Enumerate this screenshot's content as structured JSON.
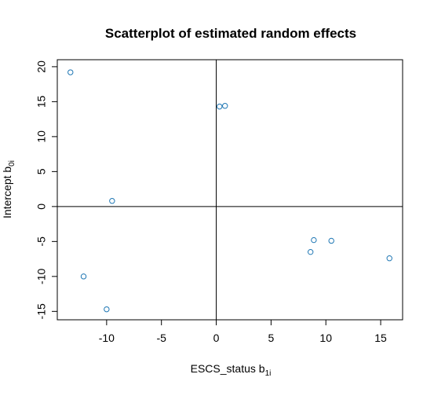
{
  "chart_data": {
    "type": "scatter",
    "title": "Scatterplot of estimated random effects",
    "xlabel": {
      "main": "ESCS_status  b",
      "sub": "1i"
    },
    "ylabel": {
      "main": "Intercept b",
      "sub": "0i"
    },
    "xlim": [
      -14.5,
      17
    ],
    "ylim": [
      -16.2,
      21
    ],
    "x_ticks": [
      -10,
      -5,
      0,
      5,
      10,
      15
    ],
    "x_tick_labels": [
      "-10",
      "-5",
      "0",
      "5",
      "10",
      "15"
    ],
    "y_ticks": [
      -15,
      -10,
      -5,
      0,
      5,
      10,
      15,
      20
    ],
    "y_tick_labels": [
      "-15",
      "-10",
      "-5",
      "0",
      "5",
      "10",
      "15",
      "20"
    ],
    "reference_lines": {
      "x": 0,
      "y": 0
    },
    "grid": false,
    "marker": "open-circle",
    "marker_color": "#1f77b4",
    "points": [
      {
        "x": -13.3,
        "y": 19.2
      },
      {
        "x": -9.5,
        "y": 0.8
      },
      {
        "x": -12.1,
        "y": -10.0
      },
      {
        "x": -10.0,
        "y": -14.7
      },
      {
        "x": 0.3,
        "y": 14.3
      },
      {
        "x": 0.8,
        "y": 14.4
      },
      {
        "x": 8.6,
        "y": -6.5
      },
      {
        "x": 8.9,
        "y": -4.8
      },
      {
        "x": 10.5,
        "y": -4.9
      },
      {
        "x": 15.8,
        "y": -7.4
      }
    ]
  }
}
